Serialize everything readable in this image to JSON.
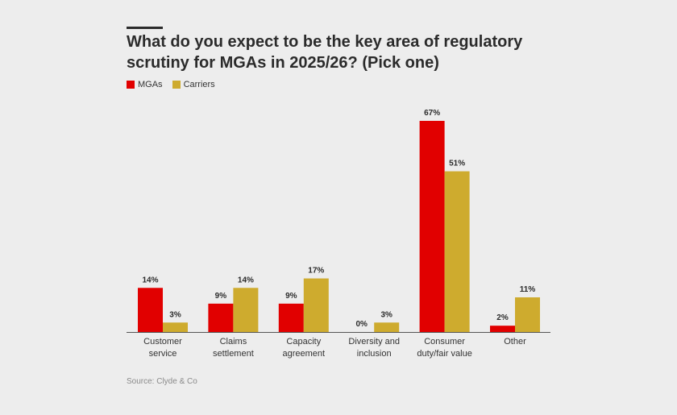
{
  "header": {
    "title": "What do you expect to be the key area of regulatory scrutiny for MGAs in 2025/26? (Pick one)"
  },
  "legend": {
    "items": [
      {
        "label": "MGAs",
        "color": "#e10000"
      },
      {
        "label": "Carriers",
        "color": "#ceab2e"
      }
    ]
  },
  "footer": {
    "source": "Source: Clyde & Co"
  },
  "chart_data": {
    "type": "bar",
    "title": "What do you expect to be the key area of regulatory scrutiny for MGAs in 2025/26? (Pick one)",
    "xlabel": "",
    "ylabel": "",
    "ylim": [
      0,
      67
    ],
    "grid": false,
    "legend_position": "top-left",
    "categories": [
      [
        "Customer",
        "service"
      ],
      [
        "Claims",
        "settlement"
      ],
      [
        "Capacity",
        "agreement"
      ],
      [
        "Diversity and",
        "inclusion"
      ],
      [
        "Consumer",
        "duty/fair value"
      ],
      [
        "Other"
      ]
    ],
    "series": [
      {
        "name": "MGAs",
        "color": "#e10000",
        "values": [
          14,
          9,
          9,
          0,
          67,
          2
        ],
        "labels": [
          "14%",
          "9%",
          "9%",
          "0%",
          "67%",
          "2%"
        ]
      },
      {
        "name": "Carriers",
        "color": "#ceab2e",
        "values": [
          3,
          14,
          17,
          3,
          51,
          11
        ],
        "labels": [
          "3%",
          "14%",
          "17%",
          "3%",
          "51%",
          "11%"
        ]
      }
    ]
  }
}
